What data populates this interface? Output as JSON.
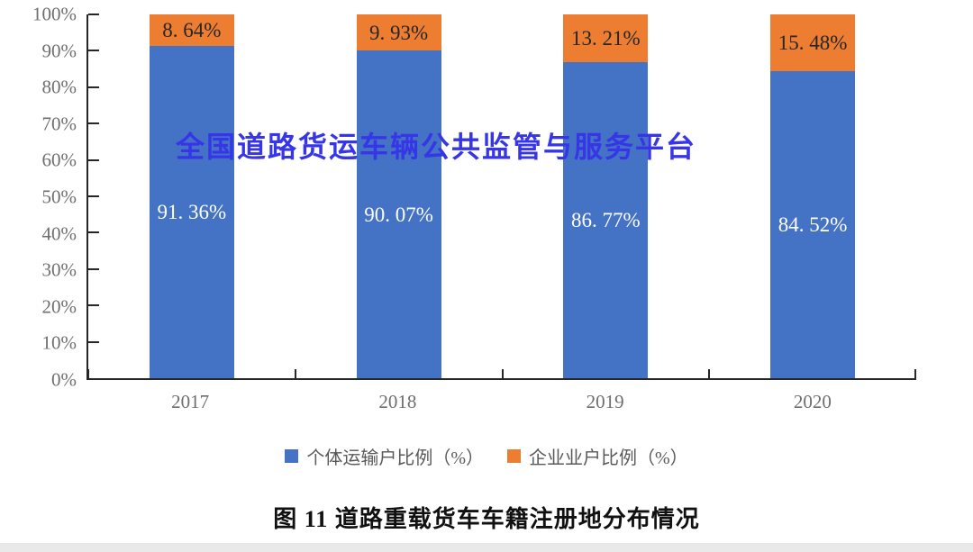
{
  "watermark": "全国道路货运车辆公共监管与服务平台",
  "caption": "图 11 道路重载货车车籍注册地分布情况",
  "colors": {
    "individual_blue": "#4472C4",
    "enterprise_orange": "#ED7D31",
    "watermark_blue": "#3636E8",
    "axis": "#262626",
    "tick_label_gray": "#6e6e6e",
    "legend_text_gray": "#595959"
  },
  "chart_data": {
    "type": "bar",
    "stacked": true,
    "title": "图 11 道路重载货车车籍注册地分布情况",
    "categories": [
      "2017",
      "2018",
      "2019",
      "2020"
    ],
    "series": [
      {
        "name": "个体运输户比例（%）",
        "color": "#4472C4",
        "values": [
          91.36,
          90.07,
          86.77,
          84.52
        ],
        "labels": [
          "91. 36%",
          "90. 07%",
          "86. 77%",
          "84. 52%"
        ],
        "label_color": "#ffffff"
      },
      {
        "name": "企业业户比例（%）",
        "color": "#ED7D31",
        "values": [
          8.64,
          9.93,
          13.21,
          15.48
        ],
        "labels": [
          "8. 64%",
          "9. 93%",
          "13. 21%",
          "15. 48%"
        ],
        "label_color": "#262626"
      }
    ],
    "xlabel": "",
    "ylabel": "",
    "ylim": [
      0,
      100
    ],
    "y_ticks": [
      "0%",
      "10%",
      "20%",
      "30%",
      "40%",
      "50%",
      "60%",
      "70%",
      "80%",
      "90%",
      "100%"
    ],
    "grid": false,
    "legend_position": "bottom"
  }
}
